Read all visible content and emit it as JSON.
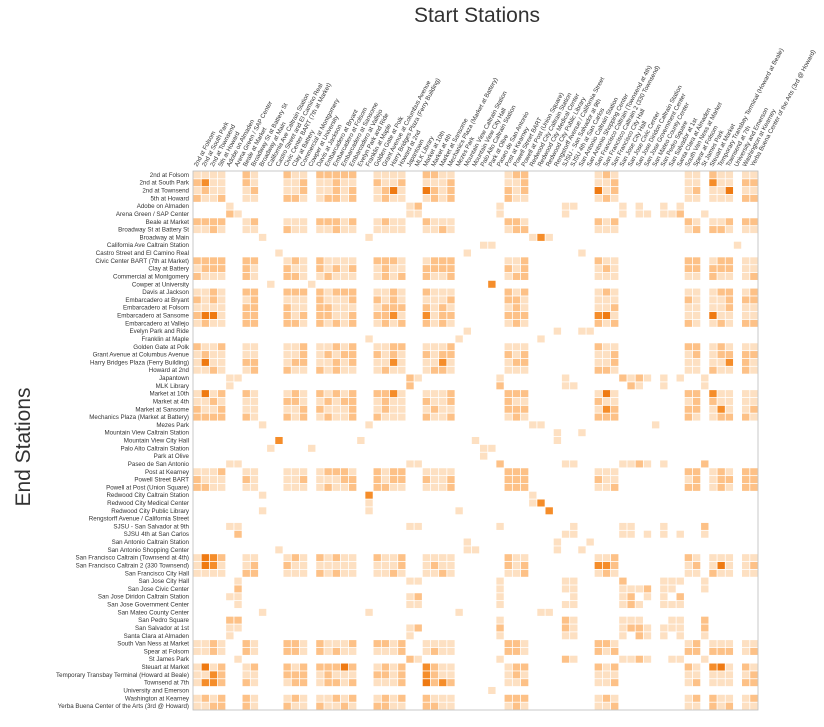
{
  "chart_data": {
    "type": "heatmap",
    "title": "Start Stations",
    "xlabel": "Start Stations",
    "ylabel": "End Stations",
    "stations": [
      "2nd at Folsom",
      "2nd at South Park",
      "2nd at Townsend",
      "5th at Howard",
      "Adobe on Almaden",
      "Arena Green / SAP Center",
      "Beale at Market",
      "Broadway St at Battery St",
      "Broadway at Main",
      "California Ave Caltrain Station",
      "Castro Street and El Camino Real",
      "Civic Center BART (7th at Market)",
      "Clay at Battery",
      "Commercial at Montgomery",
      "Cowper at University",
      "Davis at Jackson",
      "Embarcadero at Bryant",
      "Embarcadero at Folsom",
      "Embarcadero at Sansome",
      "Embarcadero at Vallejo",
      "Evelyn Park and Ride",
      "Franklin at Maple",
      "Golden Gate at Polk",
      "Grant Avenue at Columbus Avenue",
      "Harry Bridges Plaza (Ferry Building)",
      "Howard at 2nd",
      "Japantown",
      "MLK Library",
      "Market at 10th",
      "Market at 4th",
      "Market at Sansome",
      "Mechanics Plaza (Market at Battery)",
      "Mezes Park",
      "Mountain View Caltrain Station",
      "Mountain View City Hall",
      "Palo Alto Caltrain Station",
      "Park at Olive",
      "Paseo de San Antonio",
      "Post at Kearney",
      "Powell Street BART",
      "Powell at Post (Union Square)",
      "Redwood City Caltrain Station",
      "Redwood City Medical Center",
      "Redwood City Public Library",
      "Rengstorff Avenue / California Street",
      "SJSU - San Salvador at 9th",
      "SJSU 4th at San Carlos",
      "San Antonio Caltrain Station",
      "San Antonio Shopping Center",
      "San Francisco Caltrain (Townsend at 4th)",
      "San Francisco Caltrain 2 (330 Townsend)",
      "San Francisco City Hall",
      "San Jose City Hall",
      "San Jose Civic Center",
      "San Jose Diridon Caltrain Station",
      "San Jose Government Center",
      "San Mateo County Center",
      "San Pedro Square",
      "San Salvador at 1st",
      "Santa Clara at Almaden",
      "South Van Ness at Market",
      "Spear at Folsom",
      "St James Park",
      "Steuart at Market",
      "Temporary Transbay Terminal (Howard at Beale)",
      "Townsend at 7th",
      "University and Emerson",
      "Washington at Kearney",
      "Yerba Buena Center of the Arts (3rd @ Howard)"
    ],
    "colors": {
      "low": "#fde0c2",
      "mid": "#fdc187",
      "high": "#f58d2a",
      "max": "#ef7a12"
    },
    "grid": false,
    "legend": "none"
  }
}
